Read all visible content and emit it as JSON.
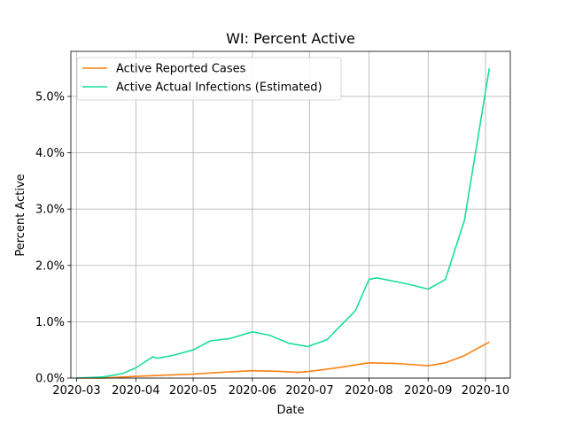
{
  "chart_data": {
    "type": "line",
    "title": "WI: Percent Active",
    "xlabel": "Date",
    "ylabel": "Percent Active",
    "x_ticks": [
      "2020-03",
      "2020-04",
      "2020-05",
      "2020-06",
      "2020-07",
      "2020-08",
      "2020-09",
      "2020-10"
    ],
    "y_ticks": [
      "0.0%",
      "1.0%",
      "2.0%",
      "3.0%",
      "4.0%",
      "5.0%"
    ],
    "xlim": [
      "2020-02-27",
      "2020-10-14"
    ],
    "ylim": [
      0,
      5.8
    ],
    "grid": true,
    "legend_position": "top-left",
    "series": [
      {
        "name": "Active Reported Cases",
        "color": "#ff7f0e",
        "points": [
          [
            "2020-03-01",
            0.0
          ],
          [
            "2020-03-15",
            0.001
          ],
          [
            "2020-04-01",
            0.03
          ],
          [
            "2020-04-15",
            0.05
          ],
          [
            "2020-05-01",
            0.07
          ],
          [
            "2020-05-15",
            0.1
          ],
          [
            "2020-06-01",
            0.13
          ],
          [
            "2020-06-15",
            0.12
          ],
          [
            "2020-06-25",
            0.1
          ],
          [
            "2020-07-01",
            0.12
          ],
          [
            "2020-07-15",
            0.18
          ],
          [
            "2020-08-01",
            0.27
          ],
          [
            "2020-08-15",
            0.26
          ],
          [
            "2020-09-01",
            0.22
          ],
          [
            "2020-09-10",
            0.27
          ],
          [
            "2020-09-20",
            0.4
          ],
          [
            "2020-10-03",
            0.64
          ]
        ]
      },
      {
        "name": "Active Actual Infections (Estimated)",
        "color": "#1ade99",
        "points": [
          [
            "2020-03-01",
            0.0
          ],
          [
            "2020-03-15",
            0.02
          ],
          [
            "2020-03-25",
            0.08
          ],
          [
            "2020-04-01",
            0.18
          ],
          [
            "2020-04-10",
            0.38
          ],
          [
            "2020-04-12",
            0.35
          ],
          [
            "2020-04-20",
            0.4
          ],
          [
            "2020-05-01",
            0.5
          ],
          [
            "2020-05-10",
            0.66
          ],
          [
            "2020-05-20",
            0.7
          ],
          [
            "2020-06-01",
            0.82
          ],
          [
            "2020-06-10",
            0.76
          ],
          [
            "2020-06-20",
            0.62
          ],
          [
            "2020-06-30",
            0.56
          ],
          [
            "2020-07-10",
            0.68
          ],
          [
            "2020-07-25",
            1.2
          ],
          [
            "2020-08-01",
            1.75
          ],
          [
            "2020-08-05",
            1.78
          ],
          [
            "2020-08-20",
            1.68
          ],
          [
            "2020-09-01",
            1.58
          ],
          [
            "2020-09-10",
            1.75
          ],
          [
            "2020-09-20",
            2.8
          ],
          [
            "2020-10-03",
            5.5
          ]
        ]
      }
    ]
  }
}
